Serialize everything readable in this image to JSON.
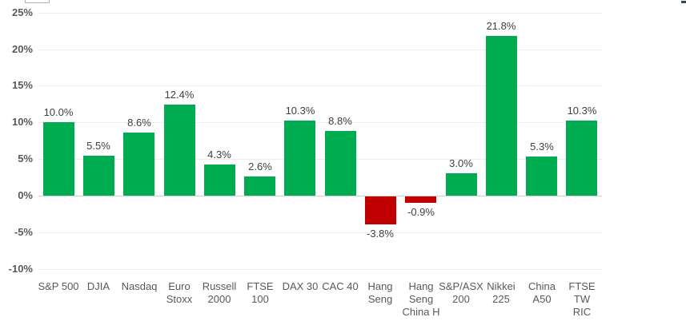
{
  "chart_data": {
    "type": "bar",
    "categories": [
      "S&P 500",
      "DJIA",
      "Nasdaq",
      "Euro Stoxx",
      "Russell 2000",
      "FTSE 100",
      "DAX 30",
      "CAC 40",
      "Hang Seng",
      "Hang Seng China H",
      "S&P/ASX 200",
      "Nikkei 225",
      "China A50",
      "FTSE TW RIC"
    ],
    "category_lines": [
      [
        "S&P 500"
      ],
      [
        "DJIA"
      ],
      [
        "Nasdaq"
      ],
      [
        "Euro",
        "Stoxx"
      ],
      [
        "Russell",
        "2000"
      ],
      [
        "FTSE 100"
      ],
      [
        "DAX 30"
      ],
      [
        "CAC 40"
      ],
      [
        "Hang",
        "Seng"
      ],
      [
        "Hang",
        "Seng",
        "China H"
      ],
      [
        "S&P/ASX",
        "200"
      ],
      [
        "Nikkei",
        "225"
      ],
      [
        "China",
        "A50"
      ],
      [
        "FTSE TW",
        "RIC"
      ]
    ],
    "values": [
      10.0,
      5.5,
      8.6,
      12.4,
      4.3,
      2.6,
      10.3,
      8.8,
      -3.8,
      -0.9,
      3.0,
      21.8,
      5.3,
      10.3
    ],
    "value_labels": [
      "10.0%",
      "5.5%",
      "8.6%",
      "12.4%",
      "4.3%",
      "2.6%",
      "10.3%",
      "8.8%",
      "-3.8%",
      "-0.9%",
      "3.0%",
      "21.8%",
      "5.3%",
      "10.3%"
    ],
    "title": "",
    "xlabel": "",
    "ylabel": "",
    "ylim": [
      -10,
      25
    ],
    "ytick_step": 5,
    "yticks": [
      25,
      20,
      15,
      10,
      5,
      0,
      -5,
      -10
    ],
    "ytick_labels": [
      "25%",
      "20%",
      "15%",
      "10%",
      "5%",
      "0%",
      "-5%",
      "-10%"
    ],
    "grid": true,
    "legend": false,
    "positive_color": "#00AC50",
    "negative_color": "#C00000",
    "gridline_color": "#ececec",
    "zero_axis_color": "#cfcfcf",
    "axis_text_color": "#595959",
    "value_text_color": "#404040"
  }
}
